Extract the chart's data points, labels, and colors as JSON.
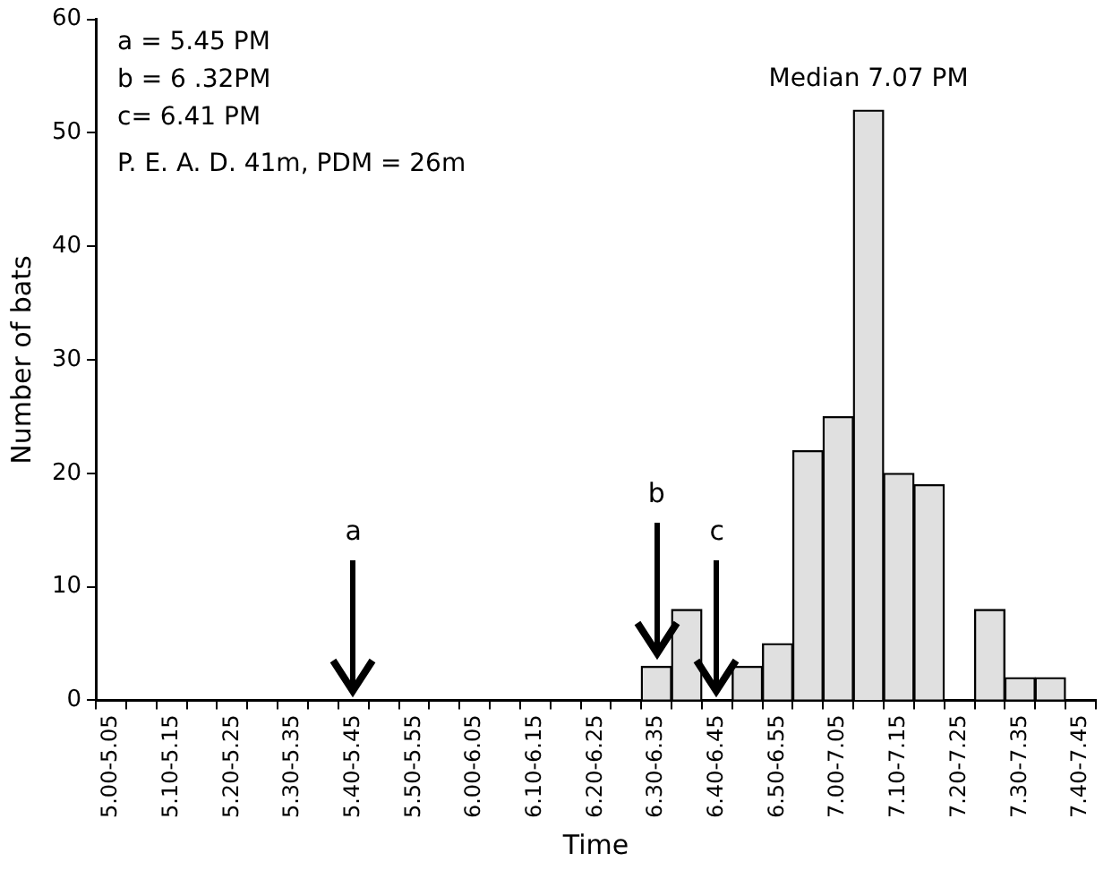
{
  "chart_data": {
    "type": "bar",
    "xlabel": "Time",
    "ylabel": "Number of bats",
    "categories": [
      "5.00-5.05",
      null,
      "5.10-5.15",
      null,
      "5.20-5.25",
      null,
      "5.30-5.35",
      null,
      "5.40-5.45",
      null,
      "5.50-5.55",
      null,
      "6.00-6.05",
      null,
      "6.10-6.15",
      null,
      "6.20-6.25",
      null,
      "6.30-6.35",
      null,
      "6.40-6.45",
      null,
      "6.50-6.55",
      null,
      "7.00-7.05",
      null,
      "7.10-7.15",
      null,
      "7.20-7.25",
      null,
      "7.30-7.35",
      null,
      "7.40-7.45"
    ],
    "values": [
      0,
      0,
      0,
      0,
      0,
      0,
      0,
      0,
      0,
      0,
      0,
      0,
      0,
      0,
      0,
      0,
      0,
      0,
      3,
      8,
      0,
      3,
      5,
      22,
      25,
      52,
      20,
      19,
      0,
      8,
      2,
      2,
      0
    ],
    "color": "#e0e0e0",
    "ylim": [
      0,
      60
    ],
    "yticks": [
      0,
      10,
      20,
      30,
      40,
      50,
      60
    ],
    "grid": false,
    "legend": false,
    "annotations": [
      "a = 5.45 PM",
      "b = 6 .32PM",
      "c= 6.41 PM",
      "P. E. A. D. 41m, PDM = 26m",
      "Median 7.07 PM",
      {
        "text": "a",
        "x": "5.40-5.45"
      },
      {
        "text": "b",
        "x": "6.30-6.35"
      },
      {
        "text": "c",
        "x": "6.40-6.45"
      }
    ]
  }
}
